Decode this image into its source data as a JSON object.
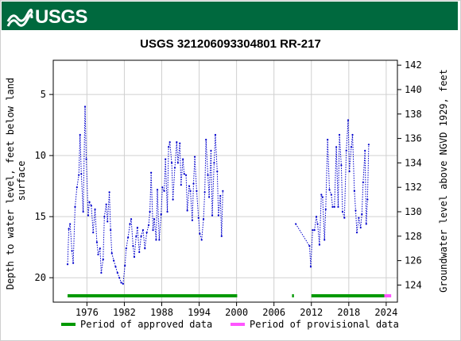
{
  "header": {
    "logo_text": "USGS"
  },
  "chart_data": {
    "type": "line",
    "title": "USGS 321206093304801 RR-217",
    "ylabel_left": "Depth to water level, feet below land surface",
    "ylabel_right": "Groundwater level above NGVD 1929, feet",
    "x_ticks": [
      "1976",
      "1982",
      "1988",
      "1994",
      "2000",
      "2006",
      "2012",
      "2018",
      "2024"
    ],
    "y_left_ticks": [
      "5",
      "10",
      "15",
      "20"
    ],
    "y_right_ticks": [
      "124",
      "126",
      "128",
      "130",
      "132",
      "134",
      "136",
      "138",
      "140",
      "142"
    ],
    "y_left_range": [
      2.2,
      22.0
    ],
    "y_right_range": [
      122.6,
      142.4
    ],
    "inverted_left_axis": true,
    "grid": true,
    "series": [
      {
        "name": "Depth to water level",
        "color": "#0000cc",
        "points": [
          [
            1972.9,
            18.9
          ],
          [
            1973.1,
            16.0
          ],
          [
            1973.3,
            15.6
          ],
          [
            1973.6,
            17.8
          ],
          [
            1973.8,
            18.8
          ],
          [
            1974.1,
            14.2
          ],
          [
            1974.4,
            12.6
          ],
          [
            1974.7,
            11.6
          ],
          [
            1974.9,
            8.3
          ],
          [
            1975.1,
            11.5
          ],
          [
            1975.4,
            14.6
          ],
          [
            1975.7,
            6.0
          ],
          [
            1975.9,
            10.3
          ],
          [
            1976.2,
            14.9
          ],
          [
            1976.4,
            13.8
          ],
          [
            1976.7,
            14.1
          ],
          [
            1977.0,
            16.3
          ],
          [
            1977.3,
            14.4
          ],
          [
            1977.6,
            17.1
          ],
          [
            1977.8,
            18.1
          ],
          [
            1978.1,
            17.6
          ],
          [
            1978.3,
            19.6
          ],
          [
            1978.6,
            18.5
          ],
          [
            1978.8,
            15.0
          ],
          [
            1979.1,
            14.0
          ],
          [
            1979.3,
            15.4
          ],
          [
            1979.6,
            13.0
          ],
          [
            1979.8,
            16.1
          ],
          [
            1980.0,
            18.0
          ],
          [
            1980.3,
            18.6
          ],
          [
            1980.6,
            19.1
          ],
          [
            1980.9,
            19.6
          ],
          [
            1981.2,
            20.0
          ],
          [
            1981.5,
            20.4
          ],
          [
            1981.8,
            20.5
          ],
          [
            1982.1,
            19.0
          ],
          [
            1982.3,
            17.6
          ],
          [
            1982.6,
            16.7
          ],
          [
            1982.9,
            15.6
          ],
          [
            1983.1,
            15.2
          ],
          [
            1983.4,
            17.4
          ],
          [
            1983.6,
            18.3
          ],
          [
            1983.9,
            16.6
          ],
          [
            1984.1,
            15.9
          ],
          [
            1984.4,
            17.9
          ],
          [
            1984.7,
            16.6
          ],
          [
            1985.0,
            16.1
          ],
          [
            1985.3,
            17.6
          ],
          [
            1985.6,
            16.3
          ],
          [
            1985.9,
            15.7
          ],
          [
            1986.1,
            14.6
          ],
          [
            1986.3,
            11.4
          ],
          [
            1986.6,
            16.1
          ],
          [
            1986.8,
            15.2
          ],
          [
            1987.1,
            16.9
          ],
          [
            1987.3,
            12.8
          ],
          [
            1987.6,
            16.9
          ],
          [
            1987.9,
            14.8
          ],
          [
            1988.1,
            12.6
          ],
          [
            1988.4,
            12.9
          ],
          [
            1988.6,
            10.3
          ],
          [
            1988.9,
            14.6
          ],
          [
            1989.1,
            9.3
          ],
          [
            1989.3,
            8.9
          ],
          [
            1989.6,
            10.6
          ],
          [
            1989.8,
            13.6
          ],
          [
            1990.1,
            11.0
          ],
          [
            1990.4,
            8.9
          ],
          [
            1990.6,
            10.6
          ],
          [
            1990.9,
            9.0
          ],
          [
            1991.1,
            12.4
          ],
          [
            1991.4,
            10.3
          ],
          [
            1991.6,
            11.5
          ],
          [
            1991.9,
            11.6
          ],
          [
            1992.1,
            14.5
          ],
          [
            1992.4,
            12.5
          ],
          [
            1992.6,
            12.9
          ],
          [
            1992.9,
            15.3
          ],
          [
            1993.1,
            12.3
          ],
          [
            1993.3,
            10.1
          ],
          [
            1993.6,
            12.9
          ],
          [
            1993.9,
            15.1
          ],
          [
            1994.1,
            16.4
          ],
          [
            1994.4,
            16.9
          ],
          [
            1994.7,
            15.2
          ],
          [
            1994.9,
            13.0
          ],
          [
            1995.1,
            8.7
          ],
          [
            1995.4,
            11.6
          ],
          [
            1995.6,
            13.4
          ],
          [
            1995.9,
            9.6
          ],
          [
            1996.1,
            14.9
          ],
          [
            1996.4,
            10.6
          ],
          [
            1996.6,
            8.3
          ],
          [
            1996.9,
            11.3
          ],
          [
            1997.1,
            14.9
          ],
          [
            1997.4,
            13.3
          ],
          [
            1997.6,
            16.6
          ],
          [
            1997.8,
            12.9
          ],
          [
            2009.5,
            15.6
          ],
          [
            2011.7,
            17.4
          ],
          [
            2011.9,
            19.1
          ],
          [
            2012.2,
            16.1
          ],
          [
            2012.5,
            16.1
          ],
          [
            2012.8,
            15.0
          ],
          [
            2013.0,
            15.6
          ],
          [
            2013.3,
            17.3
          ],
          [
            2013.6,
            13.2
          ],
          [
            2013.8,
            13.4
          ],
          [
            2014.1,
            16.9
          ],
          [
            2014.3,
            14.4
          ],
          [
            2014.6,
            8.7
          ],
          [
            2014.9,
            12.8
          ],
          [
            2015.2,
            13.2
          ],
          [
            2015.4,
            14.2
          ],
          [
            2015.7,
            14.2
          ],
          [
            2016.0,
            9.3
          ],
          [
            2016.3,
            14.2
          ],
          [
            2016.5,
            8.3
          ],
          [
            2016.8,
            10.8
          ],
          [
            2017.0,
            14.6
          ],
          [
            2017.3,
            15.1
          ],
          [
            2017.6,
            9.6
          ],
          [
            2017.9,
            7.1
          ],
          [
            2018.1,
            11.3
          ],
          [
            2018.4,
            9.3
          ],
          [
            2018.6,
            8.3
          ],
          [
            2018.9,
            12.9
          ],
          [
            2019.1,
            14.5
          ],
          [
            2019.3,
            16.3
          ],
          [
            2019.6,
            15.1
          ],
          [
            2019.9,
            15.9
          ],
          [
            2020.1,
            14.8
          ],
          [
            2020.3,
            12.2
          ],
          [
            2020.6,
            9.6
          ],
          [
            2020.8,
            15.6
          ],
          [
            2021.0,
            13.6
          ],
          [
            2021.2,
            9.1
          ]
        ]
      }
    ],
    "approved_periods": [
      [
        1972.9,
        2000.1
      ],
      [
        2008.9,
        2009.2
      ],
      [
        2012.0,
        2023.7
      ]
    ],
    "provisional_periods": [
      [
        2023.7,
        2024.8
      ]
    ],
    "legend": [
      {
        "label": "Period of approved data",
        "color": "#009900"
      },
      {
        "label": "Period of provisional data",
        "color": "#ff55ff"
      }
    ],
    "legend_position": "bottom"
  }
}
